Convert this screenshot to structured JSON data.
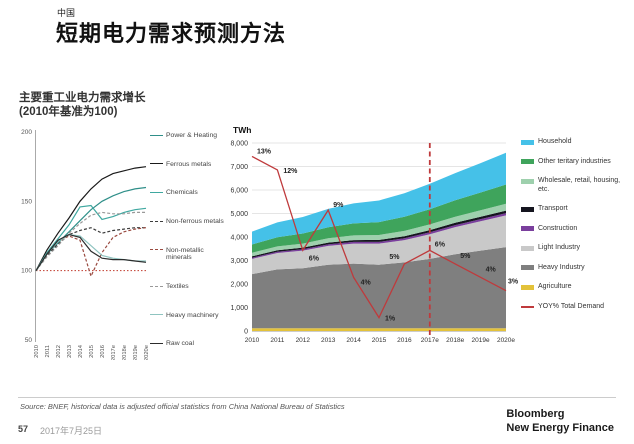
{
  "header": {
    "kicker": "中国",
    "title": "短期电力需求预测方法"
  },
  "footer": {
    "source": "Source: BNEF, historical data is adjusted official statistics from China National Bureau of Statistics",
    "page_number": "57",
    "date": "2017年7月25日",
    "brand_line1": "Bloomberg",
    "brand_line2": "New Energy Finance"
  },
  "chart_data": [
    {
      "id": "major-heavy-industry-power-demand-index",
      "type": "line",
      "title": "主要重工业电力需求增长",
      "subtitle": "(2010年基准为100)",
      "categories": [
        "2010",
        "2011",
        "2012",
        "2013",
        "2014",
        "2015",
        "2016",
        "2017e",
        "2018e",
        "2019e",
        "2020e"
      ],
      "ylim": [
        50,
        200
      ],
      "y_ticks": [
        200,
        150,
        100,
        50
      ],
      "grid": false,
      "legend_position": "right",
      "baseline": {
        "value": 100,
        "color": "#c0392b",
        "style": "dotted"
      },
      "series": [
        {
          "name": "Power & Heating",
          "color": "#2f8f89",
          "dash": "solid",
          "values": [
            100,
            112,
            120,
            128,
            136,
            144,
            150,
            154,
            157,
            159,
            160
          ]
        },
        {
          "name": "Ferrous metals",
          "color": "#1a1a1a",
          "dash": "solid",
          "values": [
            100,
            115,
            127,
            138,
            150,
            159,
            166,
            170,
            172,
            174,
            175
          ]
        },
        {
          "name": "Chemicals",
          "color": "#3fa8a0",
          "dash": "solid",
          "values": [
            100,
            113,
            123,
            133,
            146,
            147,
            137,
            139,
            142,
            144,
            145
          ]
        },
        {
          "name": "Non-ferrous metals",
          "color": "#3c3c3c",
          "dash": "dashed",
          "values": [
            100,
            111,
            119,
            126,
            129,
            131,
            127,
            129,
            130,
            131,
            131
          ]
        },
        {
          "name": "Non-metallic minerals",
          "color": "#9a4a40",
          "dash": "dashed",
          "values": [
            100,
            112,
            121,
            125,
            122,
            96,
            113,
            124,
            128,
            130,
            131
          ]
        },
        {
          "name": "Textiles",
          "color": "#999999",
          "dash": "dashed",
          "values": [
            100,
            110,
            118,
            127,
            134,
            140,
            142,
            141,
            141,
            142,
            142
          ]
        },
        {
          "name": "Heavy machinery",
          "color": "#8fc4c0",
          "dash": "solid",
          "values": [
            100,
            112,
            121,
            126,
            125,
            118,
            111,
            109,
            108,
            107,
            107
          ]
        },
        {
          "name": "Raw coal",
          "color": "#2c2c2c",
          "dash": "solid",
          "values": [
            100,
            112,
            122,
            126,
            124,
            114,
            109,
            108,
            108,
            107,
            106
          ]
        }
      ]
    },
    {
      "id": "china-electricity-demand-by-sector",
      "type": "area",
      "unit": "TWh",
      "categories": [
        "2010",
        "2011",
        "2012",
        "2013",
        "2014",
        "2015",
        "2016",
        "2017e",
        "2018e",
        "2019e",
        "2020e"
      ],
      "ylim": [
        0,
        8000
      ],
      "y_ticks": [
        "8,000",
        "7,000",
        "6,000",
        "5,000",
        "4,000",
        "3,000",
        "2,000",
        "1,000",
        "0"
      ],
      "grid": true,
      "legend_position": "right",
      "forecast_divider": "2017e",
      "series": [
        {
          "name": "Agriculture",
          "color": "#e3c23a",
          "values": [
            120,
            120,
            120,
            120,
            120,
            120,
            120,
            120,
            120,
            120,
            120
          ]
        },
        {
          "name": "Heavy Industry",
          "color": "#7f7f7f",
          "values": [
            2300,
            2500,
            2550,
            2700,
            2750,
            2700,
            2800,
            2950,
            3150,
            3300,
            3450
          ]
        },
        {
          "name": "Light Industry",
          "color": "#c9c9c9",
          "values": [
            650,
            700,
            750,
            800,
            850,
            900,
            950,
            1050,
            1150,
            1250,
            1350
          ]
        },
        {
          "name": "Construction",
          "color": "#7a3f9d",
          "values": [
            50,
            55,
            60,
            65,
            70,
            70,
            75,
            80,
            85,
            90,
            95
          ]
        },
        {
          "name": "Transport",
          "color": "#15151f",
          "values": [
            60,
            65,
            70,
            75,
            80,
            85,
            90,
            95,
            100,
            105,
            110
          ]
        },
        {
          "name": "Wholesale, retail, housing, etc.",
          "color": "#9ed0ad",
          "values": [
            150,
            160,
            170,
            185,
            200,
            210,
            225,
            240,
            255,
            270,
            290
          ]
        },
        {
          "name": "Other teritary industries",
          "color": "#3fa45c",
          "values": [
            350,
            390,
            430,
            470,
            510,
            550,
            600,
            650,
            700,
            760,
            820
          ]
        },
        {
          "name": "Household",
          "color": "#45c1e8",
          "values": [
            550,
            630,
            700,
            780,
            850,
            920,
            1000,
            1080,
            1160,
            1250,
            1350
          ]
        }
      ],
      "yoy_line": {
        "name": "YOY% Total Demand",
        "color": "#bf3a3c",
        "values_pct": [
          13,
          12,
          6,
          9,
          4,
          1,
          5,
          6,
          5,
          4,
          3
        ],
        "labels": [
          "13%",
          "12%",
          "6%",
          "9%",
          "4%",
          "1%",
          "5%",
          "6%",
          "5%",
          "4%",
          "3%"
        ],
        "secondary_axis_max_pct": 14
      }
    }
  ]
}
